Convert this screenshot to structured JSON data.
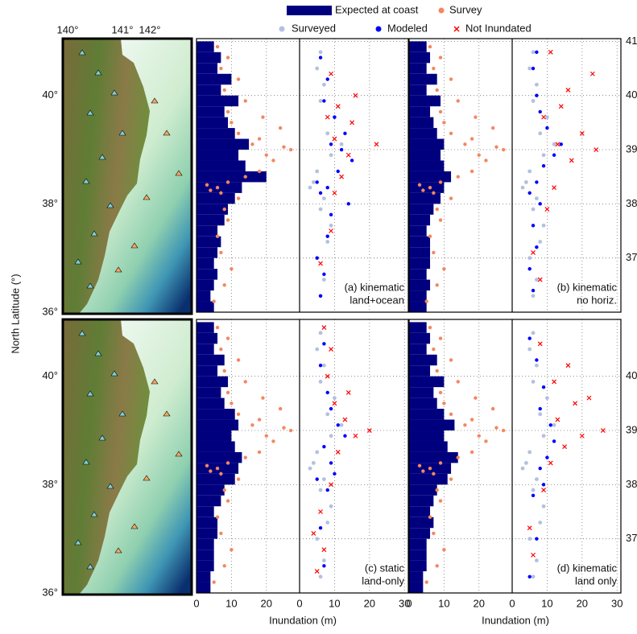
{
  "chart_data": {
    "type": "profile",
    "xlabel": "Inundation (m)",
    "ylabel": "North Latitude (°)",
    "ylim": [
      36,
      41.05
    ],
    "rows": [
      {
        "yticks": [
          37,
          38,
          39,
          40,
          41
        ]
      },
      {
        "yticks": [
          37,
          38,
          39,
          40
        ]
      }
    ],
    "left_xlim": [
      0,
      29.5
    ],
    "left_xticks": [
      0,
      10,
      20
    ],
    "right_xlim": [
      0,
      31.1
    ],
    "right_xticks": [
      0,
      10,
      20,
      30
    ],
    "series": [
      {
        "name": "Expected at coast",
        "color": "#00007f"
      },
      {
        "name": "Survey",
        "color": "#f4875f"
      },
      {
        "name": "Surveyed",
        "color": "#b3c0e0"
      },
      {
        "name": "Modeled",
        "color": "#0000ff"
      },
      {
        "name": "Not Inundated",
        "color": "#ff0000"
      }
    ],
    "map": {
      "lon_labels": [
        "140°",
        "141°",
        "142°"
      ],
      "lat_labels": [
        "40°",
        "38°",
        "36°"
      ]
    },
    "latitudes": [
      36.1,
      36.3,
      36.5,
      36.7,
      36.9,
      37.1,
      37.3,
      37.5,
      37.7,
      37.9,
      38.1,
      38.3,
      38.5,
      38.7,
      38.9,
      39.1,
      39.3,
      39.5,
      39.7,
      39.9,
      40.1,
      40.3,
      40.5,
      40.7,
      40.9
    ],
    "survey": {
      "lat": [
        36.2,
        36.5,
        36.8,
        37.1,
        37.4,
        37.7,
        37.9,
        38.1,
        38.2,
        38.3,
        38.4,
        38.5,
        38.6,
        38.8,
        38.9,
        39.0,
        39.1,
        39.2,
        39.3,
        39.4,
        39.5,
        39.6,
        39.7,
        39.9,
        40.1,
        40.3,
        40.5,
        40.7,
        40.9,
        38.25,
        38.35,
        39.05
      ],
      "values": [
        5,
        8,
        10,
        7,
        6,
        9,
        8,
        12,
        7,
        6,
        9,
        14,
        18,
        22,
        20,
        27,
        16,
        18,
        12,
        24,
        10,
        19,
        9,
        14,
        8,
        12,
        7,
        9,
        6,
        4,
        3,
        25
      ]
    },
    "surveyed": {
      "lat": [
        36.3,
        36.6,
        37.0,
        37.3,
        37.6,
        37.9,
        38.1,
        38.3,
        38.4,
        38.6,
        38.9,
        39.1,
        39.3,
        39.6,
        39.9,
        40.2,
        40.5,
        40.8
      ],
      "values": [
        6,
        7,
        5,
        8,
        9,
        6,
        7,
        3,
        4,
        5,
        9,
        12,
        8,
        10,
        6,
        7,
        5,
        6
      ]
    },
    "panels": [
      {
        "label": [
          "(a) kinematic",
          "land+ocean"
        ],
        "expected": [
          5,
          4,
          5,
          6,
          5,
          6,
          7,
          6,
          8,
          9,
          11,
          13,
          20,
          14,
          12,
          15,
          11,
          9,
          8,
          12,
          7,
          10,
          6,
          7,
          5
        ],
        "modeled": {
          "lat": [
            36.3,
            36.7,
            37.0,
            37.4,
            37.8,
            38.0,
            38.2,
            38.3,
            38.4,
            38.6,
            38.8,
            39.0,
            39.1,
            39.3,
            39.6,
            39.9,
            40.3,
            40.7
          ],
          "values": [
            6,
            7,
            5,
            8,
            9,
            14,
            6,
            8,
            5,
            11,
            15,
            12,
            9,
            13,
            10,
            7,
            8,
            6
          ]
        },
        "not_inundated": {
          "lat": [
            36.9,
            37.5,
            38.2,
            38.5,
            38.9,
            39.1,
            39.2,
            39.5,
            39.6,
            39.8,
            40.0,
            40.4
          ],
          "values": [
            6,
            9,
            10,
            12,
            14,
            22,
            10,
            15,
            8,
            11,
            16,
            9
          ]
        }
      },
      {
        "label": [
          "(b) kinematic",
          "no horiz."
        ],
        "expected": [
          5,
          5,
          6,
          5,
          6,
          6,
          6,
          5,
          6,
          7,
          9,
          10,
          12,
          10,
          9,
          10,
          8,
          7,
          6,
          9,
          5,
          8,
          5,
          6,
          5
        ],
        "modeled": {
          "lat": [
            36.4,
            36.8,
            37.2,
            37.6,
            38.0,
            38.2,
            38.4,
            38.7,
            38.9,
            39.1,
            39.4,
            39.7,
            40.0,
            40.5,
            40.8
          ],
          "values": [
            6,
            5,
            7,
            6,
            8,
            5,
            7,
            9,
            12,
            14,
            10,
            8,
            7,
            6,
            7
          ]
        },
        "not_inundated": {
          "lat": [
            36.6,
            37.1,
            37.9,
            38.3,
            38.8,
            39.0,
            39.1,
            39.3,
            39.6,
            39.8,
            40.1,
            40.4,
            40.8
          ],
          "values": [
            8,
            6,
            10,
            12,
            17,
            24,
            13,
            20,
            9,
            14,
            16,
            23,
            11
          ]
        }
      },
      {
        "label": [
          "(c) static",
          "land-only"
        ],
        "expected": [
          4,
          4,
          5,
          5,
          5,
          6,
          6,
          5,
          7,
          8,
          11,
          12,
          13,
          11,
          10,
          12,
          11,
          8,
          7,
          9,
          6,
          8,
          5,
          6,
          5
        ],
        "modeled": {
          "lat": [
            36.5,
            37.2,
            37.9,
            38.1,
            38.2,
            38.4,
            38.7,
            38.9,
            39.1,
            39.4,
            39.7,
            40.2,
            40.6
          ],
          "values": [
            7,
            6,
            8,
            5,
            10,
            9,
            7,
            13,
            11,
            9,
            8,
            6,
            7
          ]
        },
        "not_inundated": {
          "lat": [
            36.4,
            36.8,
            37.1,
            37.5,
            38.0,
            38.6,
            38.9,
            39.0,
            39.2,
            39.5,
            39.7,
            40.0,
            40.5,
            40.9
          ],
          "values": [
            5,
            7,
            4,
            6,
            9,
            11,
            16,
            20,
            13,
            10,
            14,
            8,
            9,
            7
          ]
        }
      },
      {
        "label": [
          "(d) kinematic",
          "land only"
        ],
        "expected": [
          4,
          4,
          5,
          5,
          5,
          6,
          7,
          6,
          7,
          8,
          11,
          12,
          14,
          11,
          10,
          13,
          10,
          8,
          7,
          10,
          6,
          8,
          5,
          6,
          5
        ],
        "modeled": {
          "lat": [
            36.3,
            37.0,
            37.8,
            38.0,
            38.3,
            38.5,
            38.8,
            39.1,
            39.4,
            39.8,
            40.3,
            40.7
          ],
          "values": [
            5,
            7,
            6,
            9,
            8,
            10,
            12,
            11,
            8,
            9,
            7,
            5
          ]
        },
        "not_inundated": {
          "lat": [
            36.7,
            37.2,
            37.9,
            38.4,
            38.7,
            38.9,
            39.0,
            39.2,
            39.5,
            39.6,
            39.9,
            40.2,
            40.6
          ],
          "values": [
            6,
            5,
            9,
            11,
            15,
            20,
            26,
            13,
            18,
            22,
            12,
            16,
            8
          ]
        }
      }
    ]
  }
}
